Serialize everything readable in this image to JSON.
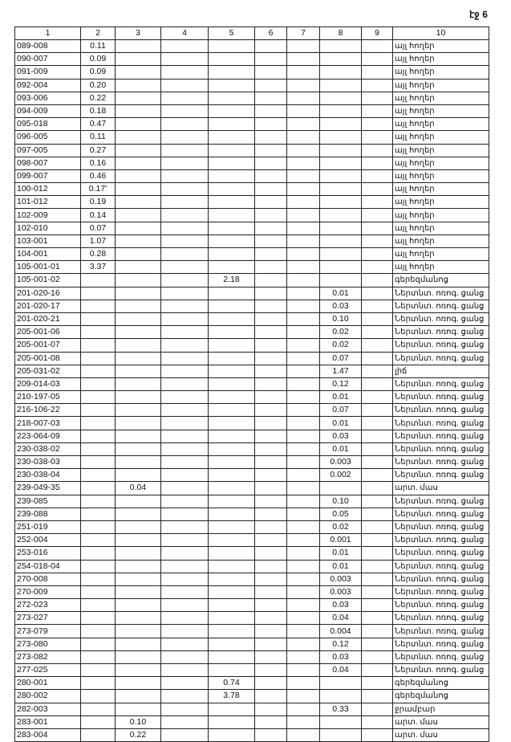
{
  "page_label": "էջ 6",
  "columns": [
    "1",
    "2",
    "3",
    "4",
    "5",
    "6",
    "7",
    "8",
    "9",
    "10"
  ],
  "rows": [
    [
      "089-008",
      "0.11",
      "",
      "",
      "",
      "",
      "",
      "",
      "",
      "այլ հողեր"
    ],
    [
      "090-007",
      "0.09",
      "",
      "",
      "",
      "",
      "",
      "",
      "",
      "այլ հողեր"
    ],
    [
      "091-009",
      "0.09",
      "",
      "",
      "",
      "",
      "",
      "",
      "",
      "այլ հողեր"
    ],
    [
      "092-004",
      "0.20",
      "",
      "",
      "",
      "",
      "",
      "",
      "",
      "այլ հողեր"
    ],
    [
      "093-006",
      "0.22",
      "",
      "",
      "",
      "",
      "",
      "",
      "",
      "այլ հողեր"
    ],
    [
      "094-009",
      "0.18",
      "",
      "",
      "",
      "",
      "",
      "",
      "",
      "այլ հողեր"
    ],
    [
      "095-018",
      "0.47",
      "",
      "",
      "",
      "",
      "",
      "",
      "",
      "այլ հողեր"
    ],
    [
      "096-005",
      "0.11",
      "",
      "",
      "",
      "",
      "",
      "",
      "",
      "այլ հողեր"
    ],
    [
      "097-005",
      "0.27",
      "",
      "",
      "",
      "",
      "",
      "",
      "",
      "այլ հողեր"
    ],
    [
      "098-007",
      "0.16",
      "",
      "",
      "",
      "",
      "",
      "",
      "",
      "այլ հողեր"
    ],
    [
      "099-007",
      "0.46",
      "",
      "",
      "",
      "",
      "",
      "",
      "",
      "այլ հողեր"
    ],
    [
      "100-012",
      "0.17'",
      "",
      "",
      "",
      "",
      "",
      "",
      "",
      "այլ հողեր"
    ],
    [
      "101-012",
      "0.19",
      "",
      "",
      "",
      "",
      "",
      "",
      "",
      "այլ հողեր"
    ],
    [
      "102-009",
      "0.14",
      "",
      "",
      "",
      "",
      "",
      "",
      "",
      "այլ հողեր"
    ],
    [
      "102-010",
      "0.07",
      "",
      "",
      "",
      "",
      "",
      "",
      "",
      "այլ հողեր"
    ],
    [
      "103-001",
      "1.07",
      "",
      "",
      "",
      "",
      "",
      "",
      "",
      "այլ հողեր"
    ],
    [
      "104-001",
      "0.28",
      "",
      "",
      "",
      "",
      "",
      "",
      "",
      "այլ հողեր"
    ],
    [
      "105-001-01",
      "3.37",
      "",
      "",
      "",
      "",
      "",
      "",
      "",
      "այլ հողեր"
    ],
    [
      "105-001-02",
      "",
      "",
      "",
      "2.18",
      "",
      "",
      "",
      "",
      "գերեզմանոց"
    ],
    [
      "201-020-16",
      "",
      "",
      "",
      "",
      "",
      "",
      "0.01",
      "",
      "Ներտնտ. ոռոգ. ցանց"
    ],
    [
      "201-020-17",
      "",
      "",
      "",
      "",
      "",
      "",
      "0.03",
      "",
      "Ներտնտ. ոռոգ. ցանց"
    ],
    [
      "201-020-21",
      "",
      "",
      "",
      "",
      "",
      "",
      "0.10",
      "",
      "Ներտնտ. ոռոգ. ցանց"
    ],
    [
      "205-001-06",
      "",
      "",
      "",
      "",
      "",
      "",
      "0.02",
      "",
      "Ներտնտ. ոռոգ. ցանց"
    ],
    [
      "205-001-07",
      "",
      "",
      "",
      "",
      "",
      "",
      "0.02",
      "",
      "Ներտնտ. ոռոգ. ցանց"
    ],
    [
      "205-001-08",
      "",
      "",
      "",
      "",
      "",
      "",
      "0.07",
      "",
      "Ներտնտ. ոռոգ. ցանց"
    ],
    [
      "205-031-02",
      "",
      "",
      "",
      "",
      "",
      "",
      "1.47",
      "",
      "լիճ"
    ],
    [
      "209-014-03",
      "",
      "",
      "",
      "",
      "",
      "",
      "0.12",
      "",
      "Ներտնտ. ոռոգ. ցանց"
    ],
    [
      "210-197-05",
      "",
      "",
      "",
      "",
      "",
      "",
      "0.01",
      "",
      "Ներտնտ. ոռոգ. ցանց"
    ],
    [
      "216-106-22",
      "",
      "",
      "",
      "",
      "",
      "",
      "0.07",
      "",
      "Ներտնտ. ոռոգ. ցանց"
    ],
    [
      "218-007-03",
      "",
      "",
      "",
      "",
      "",
      "",
      "0.01",
      "",
      "Ներտնտ. ոռոգ. ցանց"
    ],
    [
      "223-064-09",
      "",
      "",
      "",
      "",
      "",
      "",
      "0.03",
      "",
      "Ներտնտ. ոռոգ. ցանց"
    ],
    [
      "230-038-02",
      "",
      "",
      "",
      "",
      "",
      "",
      "0.01",
      "",
      "Ներտնտ. ոռոգ. ցանց"
    ],
    [
      "230-038-03",
      "",
      "",
      "",
      "",
      "",
      "",
      "0.003",
      "",
      "Ներտնտ. ոռոգ. ցանց"
    ],
    [
      "230-038-04",
      "",
      "",
      "",
      "",
      "",
      "",
      "0.002",
      "",
      "Ներտնտ. ոռոգ. ցանց"
    ],
    [
      "239-049-35",
      "",
      "0.04",
      "",
      "",
      "",
      "",
      "",
      "",
      "արտ. մաս"
    ],
    [
      "239-085",
      "",
      "",
      "",
      "",
      "",
      "",
      "0.10",
      "",
      "Ներտնտ. ոռոգ. ցանց"
    ],
    [
      "239-088",
      "",
      "",
      "",
      "",
      "",
      "",
      "0.05",
      "",
      "Ներտնտ. ոռոգ. ցանց"
    ],
    [
      "251-019",
      "",
      "",
      "",
      "",
      "",
      "",
      "0.02",
      "",
      "Ներտնտ. ոռոգ. ցանց"
    ],
    [
      "252-004",
      "",
      "",
      "",
      "",
      "",
      "",
      "0.001",
      "",
      "Ներտնտ. ոռոգ. ցանց"
    ],
    [
      "253-016",
      "",
      "",
      "",
      "",
      "",
      "",
      "0.01",
      "",
      "Ներտնտ. ոռոգ. ցանց"
    ],
    [
      "254-018-04",
      "",
      "",
      "",
      "",
      "",
      "",
      "0.01",
      "",
      "Ներտնտ. ոռոգ. ցանց"
    ],
    [
      "270-008",
      "",
      "",
      "",
      "",
      "",
      "",
      "0.003",
      "",
      "Ներտնտ. ոռոգ. ցանց"
    ],
    [
      "270-009",
      "",
      "",
      "",
      "",
      "",
      "",
      "0.003",
      "",
      "Ներտնտ. ոռոգ. ցանց"
    ],
    [
      "272-023",
      "",
      "",
      "",
      "",
      "",
      "",
      "0.03",
      "",
      "Ներտնտ. ոռոգ. ցանց"
    ],
    [
      "273-027",
      "",
      "",
      "",
      "",
      "",
      "",
      "0.04",
      "",
      "Ներտնտ. ոռոգ. ցանց"
    ],
    [
      "273-079",
      "",
      "",
      "",
      "",
      "",
      "",
      "0.004",
      "",
      "Ներտնտ. ոռոգ. ցանց"
    ],
    [
      "273-080",
      "",
      "",
      "",
      "",
      "",
      "",
      "0.12",
      "",
      "Ներտնտ. ոռոգ. ցանց"
    ],
    [
      "273-082",
      "",
      "",
      "",
      "",
      "",
      "",
      "0.03",
      "",
      "Ներտնտ. ոռոգ. ցանց"
    ],
    [
      "277-025",
      "",
      "",
      "",
      "",
      "",
      "",
      "0.04",
      "",
      "Ներտնտ. ոռոգ. ցանց"
    ],
    [
      "280-001",
      "",
      "",
      "",
      "0.74",
      "",
      "",
      "",
      "",
      "գերեզմանոց"
    ],
    [
      "280-002",
      "",
      "",
      "",
      "3.78",
      "",
      "",
      "",
      "",
      "գերեզմանոց"
    ],
    [
      "282-003",
      "",
      "",
      "",
      "",
      "",
      "",
      "0.33",
      "",
      "ջրամբար"
    ],
    [
      "283-001",
      "",
      "0.10",
      "",
      "",
      "",
      "",
      "",
      "",
      "արտ. մաս"
    ],
    [
      "283-004",
      "",
      "0.22",
      "",
      "",
      "",
      "",
      "",
      "",
      "արտ. մաս"
    ]
  ]
}
